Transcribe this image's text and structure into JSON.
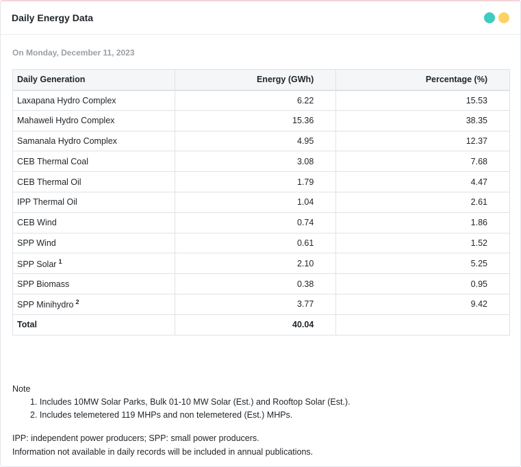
{
  "header": {
    "title": "Daily Energy Data",
    "dot_colors": [
      "#3ecbc0",
      "#fdd265"
    ]
  },
  "date_line": "On Monday, December 11, 2023",
  "table": {
    "columns": [
      "Daily Generation",
      "Energy (GWh)",
      "Percentage (%)"
    ],
    "rows": [
      {
        "source": "Laxapana Hydro Complex",
        "energy": "6.22",
        "percentage": "15.53",
        "sup": ""
      },
      {
        "source": "Mahaweli Hydro Complex",
        "energy": "15.36",
        "percentage": "38.35",
        "sup": ""
      },
      {
        "source": "Samanala Hydro Complex",
        "energy": "4.95",
        "percentage": "12.37",
        "sup": ""
      },
      {
        "source": "CEB Thermal Coal",
        "energy": "3.08",
        "percentage": "7.68",
        "sup": ""
      },
      {
        "source": "CEB Thermal Oil",
        "energy": "1.79",
        "percentage": "4.47",
        "sup": ""
      },
      {
        "source": "IPP Thermal Oil",
        "energy": "1.04",
        "percentage": "2.61",
        "sup": ""
      },
      {
        "source": "CEB Wind",
        "energy": "0.74",
        "percentage": "1.86",
        "sup": ""
      },
      {
        "source": "SPP Wind",
        "energy": "0.61",
        "percentage": "1.52",
        "sup": ""
      },
      {
        "source": "SPP Solar",
        "energy": "2.10",
        "percentage": "5.25",
        "sup": "1"
      },
      {
        "source": "SPP Biomass",
        "energy": "0.38",
        "percentage": "0.95",
        "sup": ""
      },
      {
        "source": "SPP Minihydro",
        "energy": "3.77",
        "percentage": "9.42",
        "sup": "2"
      }
    ],
    "total": {
      "label": "Total",
      "energy": "40.04",
      "percentage": ""
    }
  },
  "notes": {
    "title": "Note",
    "items": [
      "1. Includes 10MW Solar Parks, Bulk 01-10 MW Solar (Est.) and Rooftop Solar (Est.).",
      "2. Includes telemetered 119 MHPs and non telemetered (Est.) MHPs."
    ]
  },
  "legend": [
    "IPP: independent power producers; SPP: small power producers.",
    "Information not available in daily records will be included in annual publications."
  ]
}
